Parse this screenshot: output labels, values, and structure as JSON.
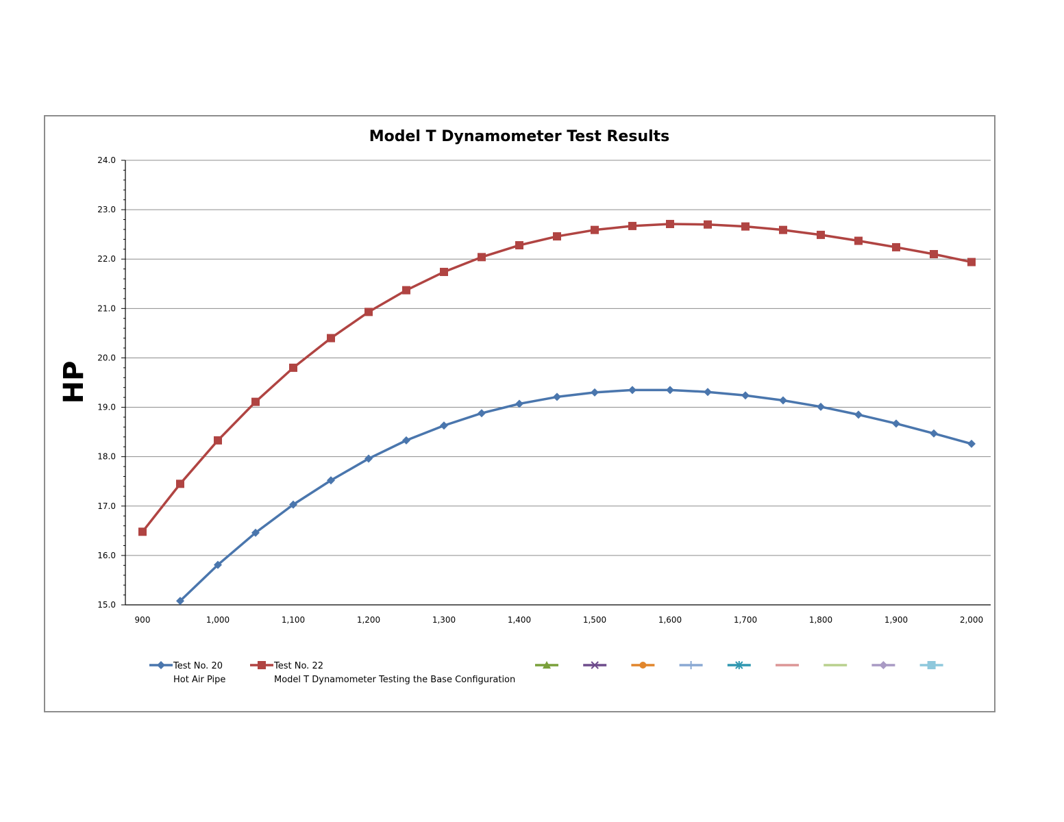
{
  "chart_data": {
    "type": "line",
    "title": "Model T Dynamometer Test Results",
    "xlabel": "",
    "ylabel": "HP",
    "xlim": [
      900,
      2000
    ],
    "ylim": [
      15.0,
      24.0
    ],
    "x_ticks": [
      "900",
      "1,000",
      "1,100",
      "1,200",
      "1,300",
      "1,400",
      "1,500",
      "1,600",
      "1,700",
      "1,800",
      "1,900",
      "2,000"
    ],
    "y_ticks": [
      "15.0",
      "16.0",
      "17.0",
      "18.0",
      "19.0",
      "20.0",
      "21.0",
      "22.0",
      "23.0",
      "24.0"
    ],
    "grid": "horizontal major",
    "legend_position": "bottom",
    "x": [
      900,
      950,
      1000,
      1050,
      1100,
      1150,
      1200,
      1250,
      1300,
      1350,
      1400,
      1450,
      1500,
      1550,
      1600,
      1650,
      1700,
      1750,
      1800,
      1850,
      1900,
      1950,
      2000
    ],
    "series": [
      {
        "name": "Test No. 20",
        "subtitle": "Hot Air Pipe",
        "color": "#4a76ad",
        "marker": "diamond",
        "values": [
          null,
          15.08,
          15.81,
          16.46,
          17.03,
          17.52,
          17.96,
          18.33,
          18.63,
          18.88,
          19.07,
          19.21,
          19.3,
          19.35,
          19.35,
          19.31,
          19.24,
          19.14,
          19.01,
          18.85,
          18.67,
          18.47,
          18.26
        ]
      },
      {
        "name": "Test No. 22",
        "subtitle": "Model T Dynamometer Testing the Base Configuration",
        "color": "#b04442",
        "marker": "square",
        "values": [
          16.48,
          17.45,
          18.33,
          19.11,
          19.8,
          20.4,
          20.93,
          21.37,
          21.74,
          22.04,
          22.28,
          22.46,
          22.59,
          22.67,
          22.71,
          22.7,
          22.66,
          22.59,
          22.49,
          22.37,
          22.24,
          22.1,
          21.94
        ]
      }
    ],
    "empty_legend_entries": [
      {
        "color": "#7aa03a",
        "marker": "triangle"
      },
      {
        "color": "#6e4c8c",
        "marker": "x"
      },
      {
        "color": "#e1862c",
        "marker": "circle"
      },
      {
        "color": "#8aa9d3",
        "marker": "plus"
      },
      {
        "color": "#2f97b0",
        "marker": "star"
      },
      {
        "color": "#dc9696",
        "marker": "none"
      },
      {
        "color": "#b8d08d",
        "marker": "none"
      },
      {
        "color": "#a99ac4",
        "marker": "diamond"
      },
      {
        "color": "#8ec8dc",
        "marker": "square"
      }
    ]
  }
}
